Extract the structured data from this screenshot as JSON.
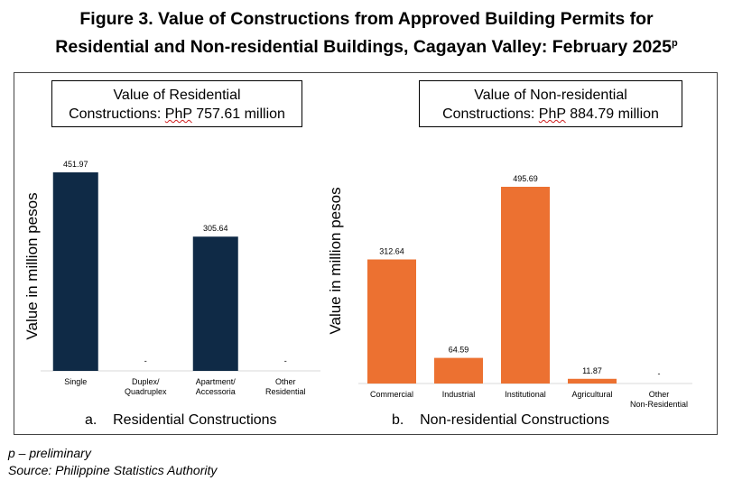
{
  "title": {
    "line1": "Figure 3. Value of Constructions from Approved Building Permits for",
    "line2": "Residential and Non-residential Buildings, Cagayan Valley: February 2025",
    "superscript": "p"
  },
  "residential": {
    "box_line1": "Value of Residential",
    "box_line2_pre": "Constructions: ",
    "box_line2_u": "PhP",
    "box_line2_post": " 757.61 million",
    "caption_letter": "a.",
    "caption_text": "Residential Constructions",
    "ylabel": "Value in million pesos"
  },
  "nonresidential": {
    "box_line1": "Value of Non-residential",
    "box_line2_pre": "Constructions: ",
    "box_line2_u": "PhP",
    "box_line2_post": " 884.79 million",
    "caption_letter": "b.",
    "caption_text": "Non-residential Constructions",
    "ylabel": "Value in million pesos"
  },
  "footer": {
    "note": "p – preliminary",
    "source": "Source: Philippine Statistics Authority"
  },
  "chart_data": [
    {
      "type": "bar",
      "categories": [
        [
          "Single"
        ],
        [
          "Duplex/",
          "Quadruplex"
        ],
        [
          "Apartment/",
          "Accessoria"
        ],
        [
          "Other",
          "Residential"
        ]
      ],
      "values": [
        451.97,
        null,
        305.64,
        null
      ],
      "data_labels": [
        "451.97",
        "-",
        "305.64",
        "-"
      ],
      "ylabel": "Value in million pesos",
      "color": "#0f2a46",
      "ylim": [
        0,
        451.97
      ]
    },
    {
      "type": "bar",
      "categories": [
        [
          "Commercial"
        ],
        [
          "Industrial"
        ],
        [
          "Institutional"
        ],
        [
          "Agricultural"
        ],
        [
          "Other",
          "Non-Residential"
        ]
      ],
      "values": [
        312.64,
        64.59,
        495.69,
        11.87,
        null
      ],
      "data_labels": [
        "312.64",
        "64.59",
        "495.69",
        "11.87",
        "-"
      ],
      "ylabel": "Value in million pesos",
      "color": "#ec7131",
      "ylim": [
        0,
        495.69
      ]
    }
  ]
}
